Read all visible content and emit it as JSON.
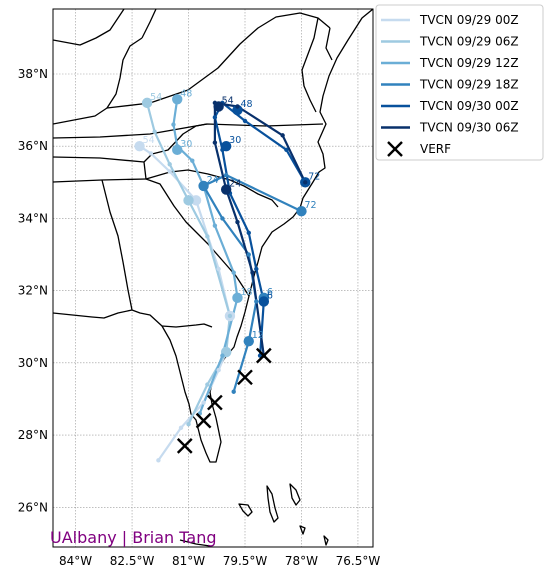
{
  "chart_data": {
    "type": "line",
    "map": true,
    "xlim": [
      -84.6,
      -76.1
    ],
    "ylim": [
      24.9,
      39.8
    ],
    "x_ticks": [
      {
        "value": -84,
        "label": "84°W"
      },
      {
        "value": -82.5,
        "label": "82.5°W"
      },
      {
        "value": -81,
        "label": "81°W"
      },
      {
        "value": -79.5,
        "label": "79.5°W"
      },
      {
        "value": -78,
        "label": "78°W"
      },
      {
        "value": -76.5,
        "label": "76.5°W"
      }
    ],
    "y_ticks": [
      {
        "value": 26,
        "label": "26°N"
      },
      {
        "value": 28,
        "label": "28°N"
      },
      {
        "value": 30,
        "label": "30°N"
      },
      {
        "value": 32,
        "label": "32°N"
      },
      {
        "value": 34,
        "label": "34°N"
      },
      {
        "value": 36,
        "label": "36°N"
      },
      {
        "value": 38,
        "label": "38°N"
      }
    ],
    "grid": true,
    "legend": "outside-right",
    "credit": "UAlbany | Brian Tang",
    "credit_color": "#800080",
    "series": [
      {
        "name": "TVCN 09/29 00Z",
        "color": "#c6dbef",
        "track": [
          [
            -81.8,
            27.3
          ],
          [
            -81.2,
            28.2
          ],
          [
            -80.6,
            28.9
          ],
          [
            -80.2,
            29.8
          ],
          [
            -80.0,
            30.3
          ],
          [
            -79.9,
            31.3
          ],
          [
            -80.2,
            32.6
          ],
          [
            -80.8,
            34.5
          ],
          [
            -81.5,
            35.3
          ],
          [
            -82.0,
            35.8
          ],
          [
            -82.3,
            36.0
          ]
        ],
        "points": [
          {
            "lon": -79.9,
            "lat": 31.3,
            "label": ""
          },
          {
            "lon": -80.0,
            "lat": 30.3,
            "label": ""
          },
          {
            "lon": -80.8,
            "lat": 34.5,
            "label": ""
          },
          {
            "lon": -82.3,
            "lat": 36.0,
            "label": "54"
          }
        ]
      },
      {
        "name": "TVCN 09/29 06Z",
        "color": "#9ecae1",
        "track": [
          [
            -81.0,
            28.3
          ],
          [
            -80.5,
            29.4
          ],
          [
            -80.0,
            30.3
          ],
          [
            -79.9,
            31.3
          ],
          [
            -80.5,
            33.5
          ],
          [
            -81.0,
            34.5
          ],
          [
            -81.5,
            35.5
          ],
          [
            -81.9,
            36.4
          ],
          [
            -82.1,
            37.2
          ]
        ],
        "points": [
          {
            "lon": -80.0,
            "lat": 30.3,
            "label": ""
          },
          {
            "lon": -81.0,
            "lat": 34.5,
            "label": ""
          },
          {
            "lon": -82.1,
            "lat": 37.2,
            "label": "54"
          }
        ]
      },
      {
        "name": "TVCN 09/29 12Z",
        "color": "#6baed6",
        "track": [
          [
            -80.7,
            28.6
          ],
          [
            -80.1,
            30.2
          ],
          [
            -79.7,
            31.8
          ],
          [
            -79.8,
            32.5
          ],
          [
            -80.3,
            33.8
          ],
          [
            -80.6,
            34.9
          ],
          [
            -80.9,
            35.6
          ],
          [
            -81.3,
            36.0
          ],
          [
            -81.4,
            36.6
          ],
          [
            -81.3,
            37.3
          ]
        ],
        "points": [
          {
            "lon": -79.7,
            "lat": 31.8,
            "label": "18"
          },
          {
            "lon": -81.3,
            "lat": 35.9,
            "label": "30"
          },
          {
            "lon": -81.3,
            "lat": 37.3,
            "label": "48"
          }
        ]
      },
      {
        "name": "TVCN 09/29 18Z",
        "color": "#3182bd",
        "track": [
          [
            -79.8,
            29.2
          ],
          [
            -79.4,
            30.6
          ],
          [
            -79.2,
            31.7
          ],
          [
            -79.4,
            33.0
          ],
          [
            -80.1,
            34.0
          ],
          [
            -80.6,
            34.9
          ],
          [
            -80.0,
            35.2
          ],
          [
            -78.0,
            34.2
          ]
        ],
        "points": [
          {
            "lon": -79.4,
            "lat": 30.6,
            "label": "12"
          },
          {
            "lon": -79.0,
            "lat": 31.8,
            "label": "6"
          },
          {
            "lon": -80.6,
            "lat": 34.9,
            "label": "24"
          },
          {
            "lon": -78.0,
            "lat": 34.2,
            "label": "72"
          }
        ]
      },
      {
        "name": "TVCN 09/30 00Z",
        "color": "#08519c",
        "track": [
          [
            -79.1,
            30.2
          ],
          [
            -79.0,
            31.7
          ],
          [
            -79.2,
            32.6
          ],
          [
            -79.4,
            33.6
          ],
          [
            -79.9,
            34.7
          ],
          [
            -80.1,
            35.9
          ],
          [
            -80.3,
            36.8
          ],
          [
            -80.1,
            37.2
          ],
          [
            -79.5,
            36.7
          ],
          [
            -78.4,
            35.9
          ],
          [
            -77.9,
            35.0
          ]
        ],
        "points": [
          {
            "lon": -79.0,
            "lat": 31.7,
            "label": "6"
          },
          {
            "lon": -80.0,
            "lat": 36.0,
            "label": "30"
          },
          {
            "lon": -79.7,
            "lat": 37.0,
            "label": "48"
          },
          {
            "lon": -77.9,
            "lat": 35.0,
            "label": "72"
          }
        ]
      },
      {
        "name": "TVCN 09/30 06Z",
        "color": "#08306b",
        "track": [
          [
            -79.0,
            30.2
          ],
          [
            -79.3,
            32.5
          ],
          [
            -79.7,
            33.9
          ],
          [
            -80.0,
            34.8
          ],
          [
            -80.3,
            36.1
          ],
          [
            -80.3,
            37.2
          ],
          [
            -79.7,
            37.1
          ],
          [
            -78.5,
            36.3
          ],
          [
            -77.9,
            35.0
          ]
        ],
        "points": [
          {
            "lon": -80.0,
            "lat": 34.8,
            "label": "24"
          },
          {
            "lon": -80.2,
            "lat": 37.1,
            "label": "54"
          }
        ]
      }
    ],
    "verification": {
      "name": "VERF",
      "color": "#000000",
      "points": [
        [
          -81.1,
          27.7
        ],
        [
          -80.6,
          28.4
        ],
        [
          -80.3,
          28.9
        ],
        [
          -79.5,
          29.6
        ],
        [
          -79.0,
          30.2
        ]
      ]
    }
  }
}
